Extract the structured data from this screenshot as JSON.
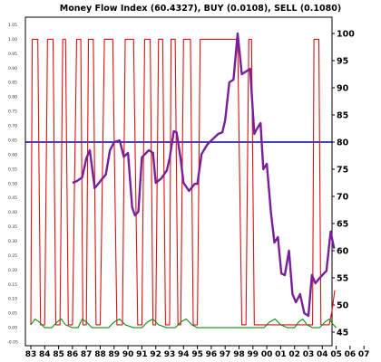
{
  "chart_data": {
    "type": "line",
    "title": "Money Flow Index (60.4327), BUY (0.0108), SELL (0.1080)",
    "x_tick_labels": [
      "83",
      "84",
      "85",
      "86",
      "87",
      "88",
      "89",
      "90",
      "91",
      "92",
      "93",
      "94",
      "95",
      "96",
      "97",
      "98",
      "99",
      "00",
      "01",
      "02",
      "03",
      "04",
      "05",
      "06",
      "07"
    ],
    "y_right": {
      "ticks": [
        45,
        50,
        55,
        60,
        65,
        70,
        75,
        80,
        85,
        90,
        95,
        100
      ],
      "range": [
        42.5,
        103
      ]
    },
    "y_left": {
      "ticks": [
        "1.05",
        "1.00",
        "0.95",
        "0.90",
        "0.85",
        "0.80",
        "0.75",
        "0.70",
        "0.65",
        "0.60",
        "0.55",
        "0.50",
        "0.45",
        "0.40",
        "0.35",
        "0.30",
        "0.25",
        "0.20",
        "0.15",
        "0.10",
        "0.05",
        "0.00",
        "-0.05"
      ],
      "range": [
        -0.0625,
        1.0767
      ]
    },
    "reference_line": {
      "value": 80,
      "color": "#0000aa"
    },
    "series": [
      {
        "axis": "right",
        "color": "#7a1f9a",
        "points": [
          [
            86.0,
            72.5
          ],
          [
            86.3,
            72.8
          ],
          [
            86.7,
            73.5
          ],
          [
            87.0,
            77.0
          ],
          [
            87.25,
            78.5
          ],
          [
            87.6,
            71.5
          ],
          [
            88.0,
            72.8
          ],
          [
            88.4,
            74.0
          ],
          [
            88.7,
            78.5
          ],
          [
            89.0,
            80.0
          ],
          [
            89.4,
            80.3
          ],
          [
            89.7,
            77.3
          ],
          [
            90.0,
            78.0
          ],
          [
            90.3,
            68.0
          ],
          [
            90.5,
            66.5
          ],
          [
            90.75,
            67.2
          ],
          [
            91.0,
            77.2
          ],
          [
            91.5,
            78.5
          ],
          [
            91.8,
            78.0
          ],
          [
            92.0,
            72.5
          ],
          [
            92.4,
            73.3
          ],
          [
            92.8,
            74.8
          ],
          [
            93.0,
            77.0
          ],
          [
            93.3,
            82.0
          ],
          [
            93.5,
            81.8
          ],
          [
            93.8,
            76.8
          ],
          [
            94.0,
            72.5
          ],
          [
            94.4,
            71.0
          ],
          [
            94.8,
            72.3
          ],
          [
            95.0,
            72.3
          ],
          [
            95.3,
            77.8
          ],
          [
            95.7,
            79.5
          ],
          [
            96.0,
            80.3
          ],
          [
            96.5,
            81.5
          ],
          [
            96.8,
            81.8
          ],
          [
            97.0,
            84.0
          ],
          [
            97.3,
            91.0
          ],
          [
            97.6,
            91.5
          ],
          [
            97.9,
            100.0
          ],
          [
            98.2,
            92.5
          ],
          [
            98.5,
            93.0
          ],
          [
            98.8,
            93.5
          ],
          [
            99.1,
            81.5
          ],
          [
            99.3,
            82.5
          ],
          [
            99.55,
            83.5
          ],
          [
            99.75,
            75.0
          ],
          [
            100.0,
            76.0
          ],
          [
            100.3,
            67.0
          ],
          [
            100.55,
            61.5
          ],
          [
            100.8,
            62.5
          ],
          [
            101.05,
            55.8
          ],
          [
            101.3,
            55.5
          ],
          [
            101.6,
            60.0
          ],
          [
            101.85,
            52.0
          ],
          [
            102.1,
            50.5
          ],
          [
            102.4,
            52.0
          ],
          [
            102.7,
            48.5
          ],
          [
            103.0,
            48.0
          ],
          [
            103.25,
            55.5
          ],
          [
            103.5,
            54.0
          ],
          [
            103.75,
            54.8
          ],
          [
            104.0,
            55.5
          ],
          [
            104.3,
            56.3
          ],
          [
            104.6,
            63.5
          ],
          [
            104.85,
            60.4
          ]
        ]
      },
      {
        "axis": "left",
        "color": "#dd1111",
        "points": [
          [
            83.0,
            0.01
          ],
          [
            83.1,
            1.0
          ],
          [
            83.5,
            1.0
          ],
          [
            83.7,
            0.01
          ],
          [
            84.0,
            0.01
          ],
          [
            84.2,
            1.0
          ],
          [
            84.6,
            1.0
          ],
          [
            84.8,
            0.01
          ],
          [
            85.1,
            0.01
          ],
          [
            85.3,
            1.0
          ],
          [
            85.5,
            1.0
          ],
          [
            85.7,
            0.01
          ],
          [
            86.0,
            0.01
          ],
          [
            86.3,
            1.0
          ],
          [
            86.6,
            1.0
          ],
          [
            86.75,
            0.01
          ],
          [
            87.0,
            0.01
          ],
          [
            87.15,
            1.0
          ],
          [
            87.5,
            1.0
          ],
          [
            87.7,
            0.01
          ],
          [
            88.0,
            0.01
          ],
          [
            88.3,
            1.0
          ],
          [
            88.9,
            1.0
          ],
          [
            89.2,
            0.01
          ],
          [
            89.6,
            0.01
          ],
          [
            89.8,
            1.0
          ],
          [
            90.4,
            1.0
          ],
          [
            90.7,
            0.01
          ],
          [
            91.0,
            0.01
          ],
          [
            91.2,
            1.0
          ],
          [
            91.6,
            1.0
          ],
          [
            91.8,
            0.01
          ],
          [
            92.0,
            0.01
          ],
          [
            92.2,
            1.0
          ],
          [
            92.5,
            1.0
          ],
          [
            92.7,
            0.01
          ],
          [
            93.0,
            0.01
          ],
          [
            93.1,
            1.0
          ],
          [
            93.4,
            1.0
          ],
          [
            93.6,
            0.01
          ],
          [
            93.8,
            0.01
          ],
          [
            94.0,
            1.0
          ],
          [
            94.5,
            1.0
          ],
          [
            94.7,
            0.01
          ],
          [
            95.0,
            0.01
          ],
          [
            95.2,
            1.0
          ],
          [
            97.9,
            1.0
          ],
          [
            98.2,
            0.01
          ],
          [
            98.5,
            0.01
          ],
          [
            98.7,
            1.0
          ],
          [
            98.9,
            1.0
          ],
          [
            99.1,
            0.01
          ],
          [
            103.3,
            0.01
          ],
          [
            103.4,
            1.0
          ],
          [
            103.75,
            1.0
          ],
          [
            103.9,
            0.01
          ],
          [
            104.5,
            0.01
          ],
          [
            104.7,
            0.06
          ],
          [
            104.9,
            0.13
          ]
        ]
      },
      {
        "axis": "left",
        "color": "#118811",
        "points": [
          [
            83.0,
            0.01
          ],
          [
            83.3,
            0.03
          ],
          [
            83.6,
            0.02
          ],
          [
            84.0,
            0.0
          ],
          [
            84.5,
            0.0
          ],
          [
            84.9,
            0.02
          ],
          [
            85.2,
            0.03
          ],
          [
            85.5,
            0.01
          ],
          [
            86.0,
            0.0
          ],
          [
            86.4,
            0.0
          ],
          [
            86.7,
            0.03
          ],
          [
            87.0,
            0.02
          ],
          [
            87.4,
            0.0
          ],
          [
            88.0,
            0.0
          ],
          [
            88.6,
            0.0
          ],
          [
            89.0,
            0.02
          ],
          [
            89.4,
            0.03
          ],
          [
            89.8,
            0.01
          ],
          [
            90.4,
            0.0
          ],
          [
            91.0,
            0.0
          ],
          [
            91.4,
            0.02
          ],
          [
            91.8,
            0.03
          ],
          [
            92.2,
            0.01
          ],
          [
            92.8,
            0.0
          ],
          [
            93.4,
            0.0
          ],
          [
            93.8,
            0.02
          ],
          [
            94.2,
            0.03
          ],
          [
            94.6,
            0.01
          ],
          [
            95.0,
            0.0
          ],
          [
            96.0,
            0.0
          ],
          [
            97.0,
            0.0
          ],
          [
            98.0,
            0.0
          ],
          [
            99.0,
            0.0
          ],
          [
            99.8,
            0.0
          ],
          [
            100.2,
            0.02
          ],
          [
            100.6,
            0.03
          ],
          [
            101.0,
            0.01
          ],
          [
            101.5,
            0.0
          ],
          [
            102.0,
            0.0
          ],
          [
            102.3,
            0.02
          ],
          [
            102.6,
            0.03
          ],
          [
            102.9,
            0.01
          ],
          [
            103.3,
            0.0
          ],
          [
            103.8,
            0.0
          ],
          [
            104.2,
            0.02
          ],
          [
            104.5,
            0.03
          ],
          [
            104.8,
            0.01
          ],
          [
            105.0,
            0.0
          ]
        ]
      }
    ]
  }
}
